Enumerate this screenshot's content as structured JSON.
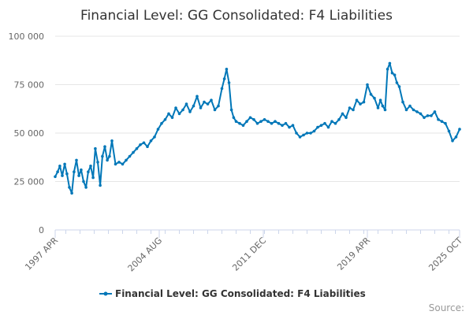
{
  "chart_data": {
    "type": "line",
    "title": "Financial Level: GG Consolidated: F4 Liabilities",
    "xlabel": "",
    "ylabel": "",
    "ylim": [
      0,
      100000
    ],
    "y_ticks": [
      0,
      25000,
      50000,
      75000,
      100000
    ],
    "y_tick_labels": [
      "0",
      "25 000",
      "50 000",
      "75 000",
      "100 000"
    ],
    "x_range": [
      1997.25,
      2025.75
    ],
    "x_tick_positions": [
      1997.25,
      2004.583,
      2011.917,
      2019.25,
      2025.75
    ],
    "x_tick_labels": [
      "1997 APR",
      "2004 AUG",
      "2011 DEC",
      "2019 APR",
      "2025 OCT"
    ],
    "grid": true,
    "legend_position": "bottom-center",
    "credits": "Source:",
    "color": "#0077b8",
    "series": [
      {
        "name": "Financial Level: GG Consolidated: F4 Liabilities",
        "x": [
          1997.25,
          1997.42,
          1997.58,
          1997.75,
          1997.92,
          1998.08,
          1998.25,
          1998.42,
          1998.58,
          1998.75,
          1998.92,
          1999.08,
          1999.25,
          1999.42,
          1999.58,
          1999.75,
          1999.92,
          2000.08,
          2000.25,
          2000.42,
          2000.58,
          2000.75,
          2000.92,
          2001.08,
          2001.25,
          2001.5,
          2001.75,
          2002.0,
          2002.25,
          2002.5,
          2002.75,
          2003.0,
          2003.25,
          2003.5,
          2003.75,
          2004.0,
          2004.25,
          2004.5,
          2004.75,
          2005.0,
          2005.25,
          2005.5,
          2005.75,
          2006.0,
          2006.25,
          2006.5,
          2006.75,
          2007.0,
          2007.25,
          2007.5,
          2007.75,
          2008.0,
          2008.25,
          2008.5,
          2008.75,
          2009.0,
          2009.17,
          2009.33,
          2009.5,
          2009.67,
          2009.83,
          2010.0,
          2010.25,
          2010.5,
          2010.75,
          2011.0,
          2011.25,
          2011.5,
          2011.75,
          2012.0,
          2012.25,
          2012.5,
          2012.75,
          2013.0,
          2013.25,
          2013.5,
          2013.75,
          2014.0,
          2014.25,
          2014.5,
          2014.75,
          2015.0,
          2015.25,
          2015.5,
          2015.75,
          2016.0,
          2016.25,
          2016.5,
          2016.75,
          2017.0,
          2017.25,
          2017.5,
          2017.75,
          2018.0,
          2018.25,
          2018.5,
          2018.75,
          2019.0,
          2019.25,
          2019.5,
          2019.75,
          2020.0,
          2020.17,
          2020.33,
          2020.5,
          2020.67,
          2020.83,
          2021.0,
          2021.17,
          2021.33,
          2021.5,
          2021.75,
          2022.0,
          2022.25,
          2022.5,
          2022.75,
          2023.0,
          2023.25,
          2023.5,
          2023.75,
          2024.0,
          2024.25,
          2024.5,
          2024.75,
          2025.0,
          2025.25,
          2025.5,
          2025.75
        ],
        "values": [
          27500,
          30000,
          33000,
          28000,
          34000,
          29000,
          22000,
          19000,
          30000,
          36000,
          28000,
          31000,
          25000,
          22000,
          30000,
          33000,
          27000,
          42000,
          35000,
          23000,
          38000,
          43000,
          36000,
          38000,
          46000,
          34000,
          35000,
          34000,
          36000,
          38000,
          40000,
          42000,
          44000,
          45000,
          43000,
          46000,
          48000,
          52000,
          55000,
          57000,
          60000,
          58000,
          63000,
          60000,
          62000,
          65000,
          61000,
          64000,
          69000,
          63000,
          66000,
          65000,
          67000,
          62000,
          64000,
          73000,
          78000,
          83000,
          76000,
          62000,
          58000,
          56000,
          55000,
          54000,
          56000,
          58000,
          57000,
          55000,
          56000,
          57000,
          56000,
          55000,
          56000,
          55000,
          54000,
          55000,
          53000,
          54000,
          50000,
          48000,
          49000,
          50000,
          50000,
          51000,
          53000,
          54000,
          55000,
          53000,
          56000,
          55000,
          57000,
          60000,
          58000,
          63000,
          62000,
          67000,
          65000,
          66000,
          75000,
          70000,
          68000,
          63000,
          67000,
          64000,
          62000,
          83000,
          86000,
          81000,
          80000,
          76000,
          74000,
          66000,
          62000,
          64000,
          62000,
          61000,
          60000,
          58000,
          59000,
          59000,
          61000,
          57000,
          56000,
          55000,
          51000,
          46000,
          48000,
          52000
        ]
      }
    ]
  }
}
